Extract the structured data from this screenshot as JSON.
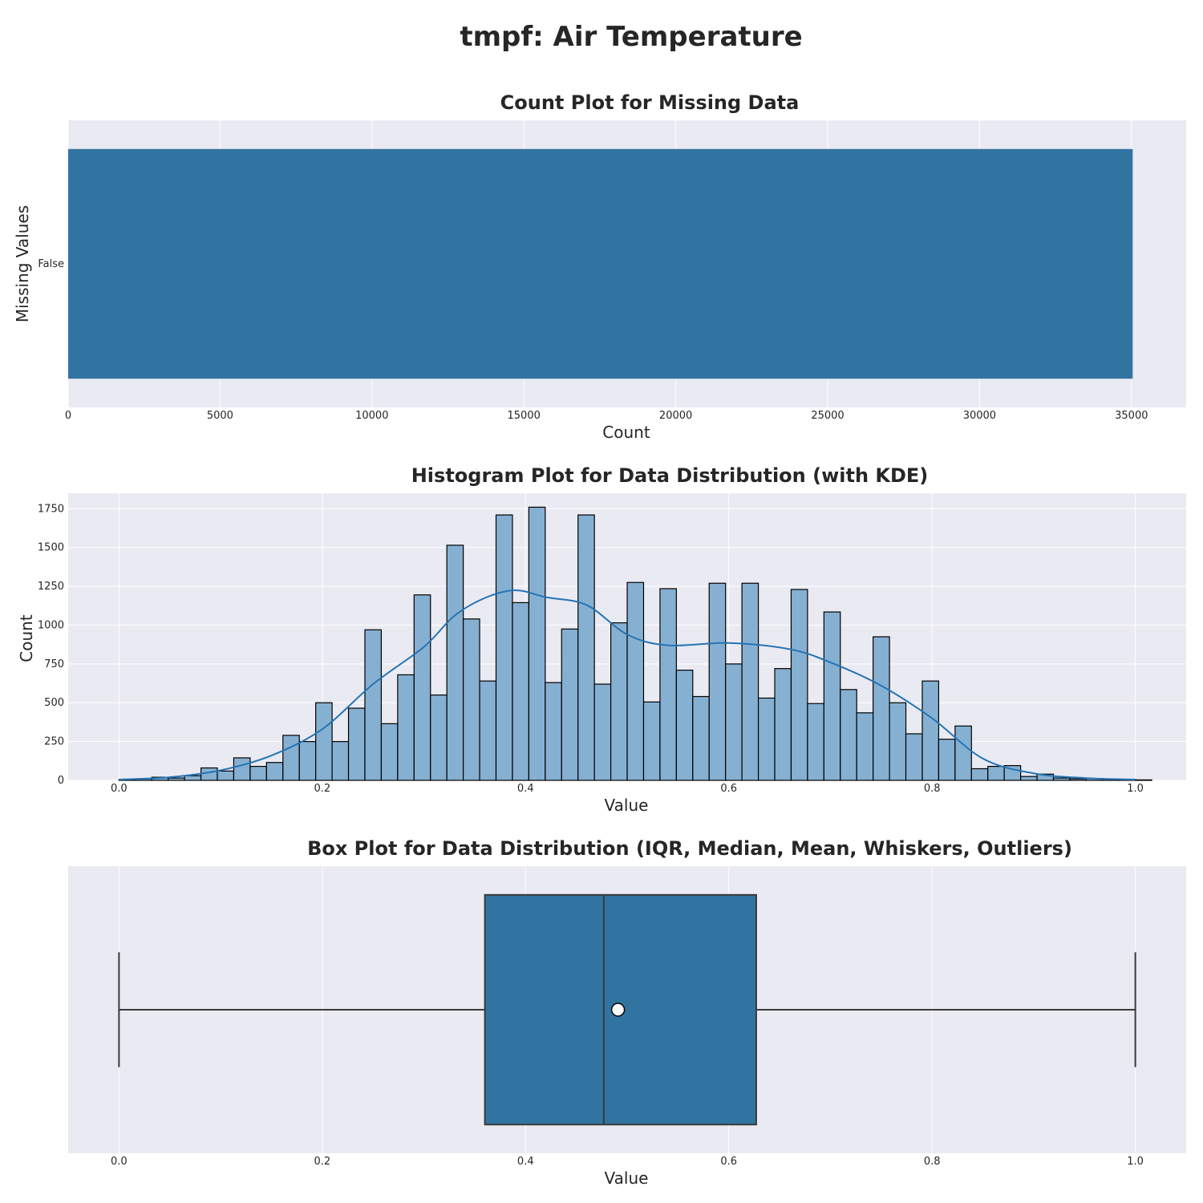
{
  "figure_title": "tmpf: Air Temperature",
  "colors": {
    "bar": "#3274a1",
    "hist_fill": "#86b0d2",
    "kde_line": "#2474b5",
    "axes_bg": "#eaeaf2",
    "grid": "#ffffff",
    "box_line": "#3a3a3a"
  },
  "chart_data": [
    {
      "type": "bar",
      "orientation": "horizontal",
      "title": "Count Plot for Missing Data",
      "xlabel": "Count",
      "ylabel": "Missing Values",
      "categories": [
        "False"
      ],
      "values": [
        35040
      ],
      "xlim": [
        0,
        36800
      ],
      "xticks": [
        0,
        5000,
        10000,
        15000,
        20000,
        25000,
        30000,
        35000
      ],
      "grid": true
    },
    {
      "type": "histogram",
      "title": "Histogram Plot for Data Distribution (with KDE)",
      "xlabel": "Value",
      "ylabel": "Count",
      "bin_start": 0,
      "bin_width": 0.01613,
      "counts": [
        5,
        10,
        20,
        15,
        30,
        80,
        60,
        145,
        90,
        115,
        290,
        250,
        500,
        250,
        465,
        970,
        365,
        680,
        1195,
        550,
        1515,
        1040,
        640,
        1710,
        1145,
        1760,
        630,
        975,
        1710,
        620,
        1015,
        1275,
        505,
        1235,
        710,
        540,
        1270,
        750,
        1270,
        530,
        720,
        1230,
        495,
        1085,
        585,
        435,
        925,
        500,
        300,
        640,
        265,
        350,
        75,
        90,
        95,
        25,
        40,
        15,
        10,
        12,
        8,
        5,
        3
      ],
      "kde": {
        "x": [
          0.0,
          0.05,
          0.1,
          0.15,
          0.2,
          0.25,
          0.3,
          0.33,
          0.36,
          0.39,
          0.42,
          0.46,
          0.5,
          0.54,
          0.6,
          0.66,
          0.7,
          0.75,
          0.8,
          0.85,
          0.9,
          0.95,
          1.0
        ],
        "y": [
          5,
          20,
          65,
          160,
          330,
          620,
          860,
          1060,
          1175,
          1225,
          1180,
          1130,
          940,
          870,
          885,
          845,
          760,
          610,
          400,
          140,
          45,
          15,
          5
        ]
      },
      "xlim": [
        -0.05,
        1.05
      ],
      "ylim": [
        0,
        1850
      ],
      "xticks": [
        0.0,
        0.2,
        0.4,
        0.6,
        0.8,
        1.0
      ],
      "yticks": [
        0,
        250,
        500,
        750,
        1000,
        1250,
        1500,
        1750
      ],
      "grid": true
    },
    {
      "type": "box",
      "orientation": "horizontal",
      "title": "Box Plot for Data Distribution (IQR, Median, Mean, Whiskers, Outliers)",
      "xlabel": "Value",
      "ylabel": "",
      "whisker_low": 0.0,
      "q1": 0.36,
      "median": 0.477,
      "mean": 0.491,
      "q3": 0.627,
      "whisker_high": 1.0,
      "outliers": [],
      "xlim": [
        -0.05,
        1.05
      ],
      "xticks": [
        0.0,
        0.2,
        0.4,
        0.6,
        0.8,
        1.0
      ],
      "grid": true
    }
  ]
}
